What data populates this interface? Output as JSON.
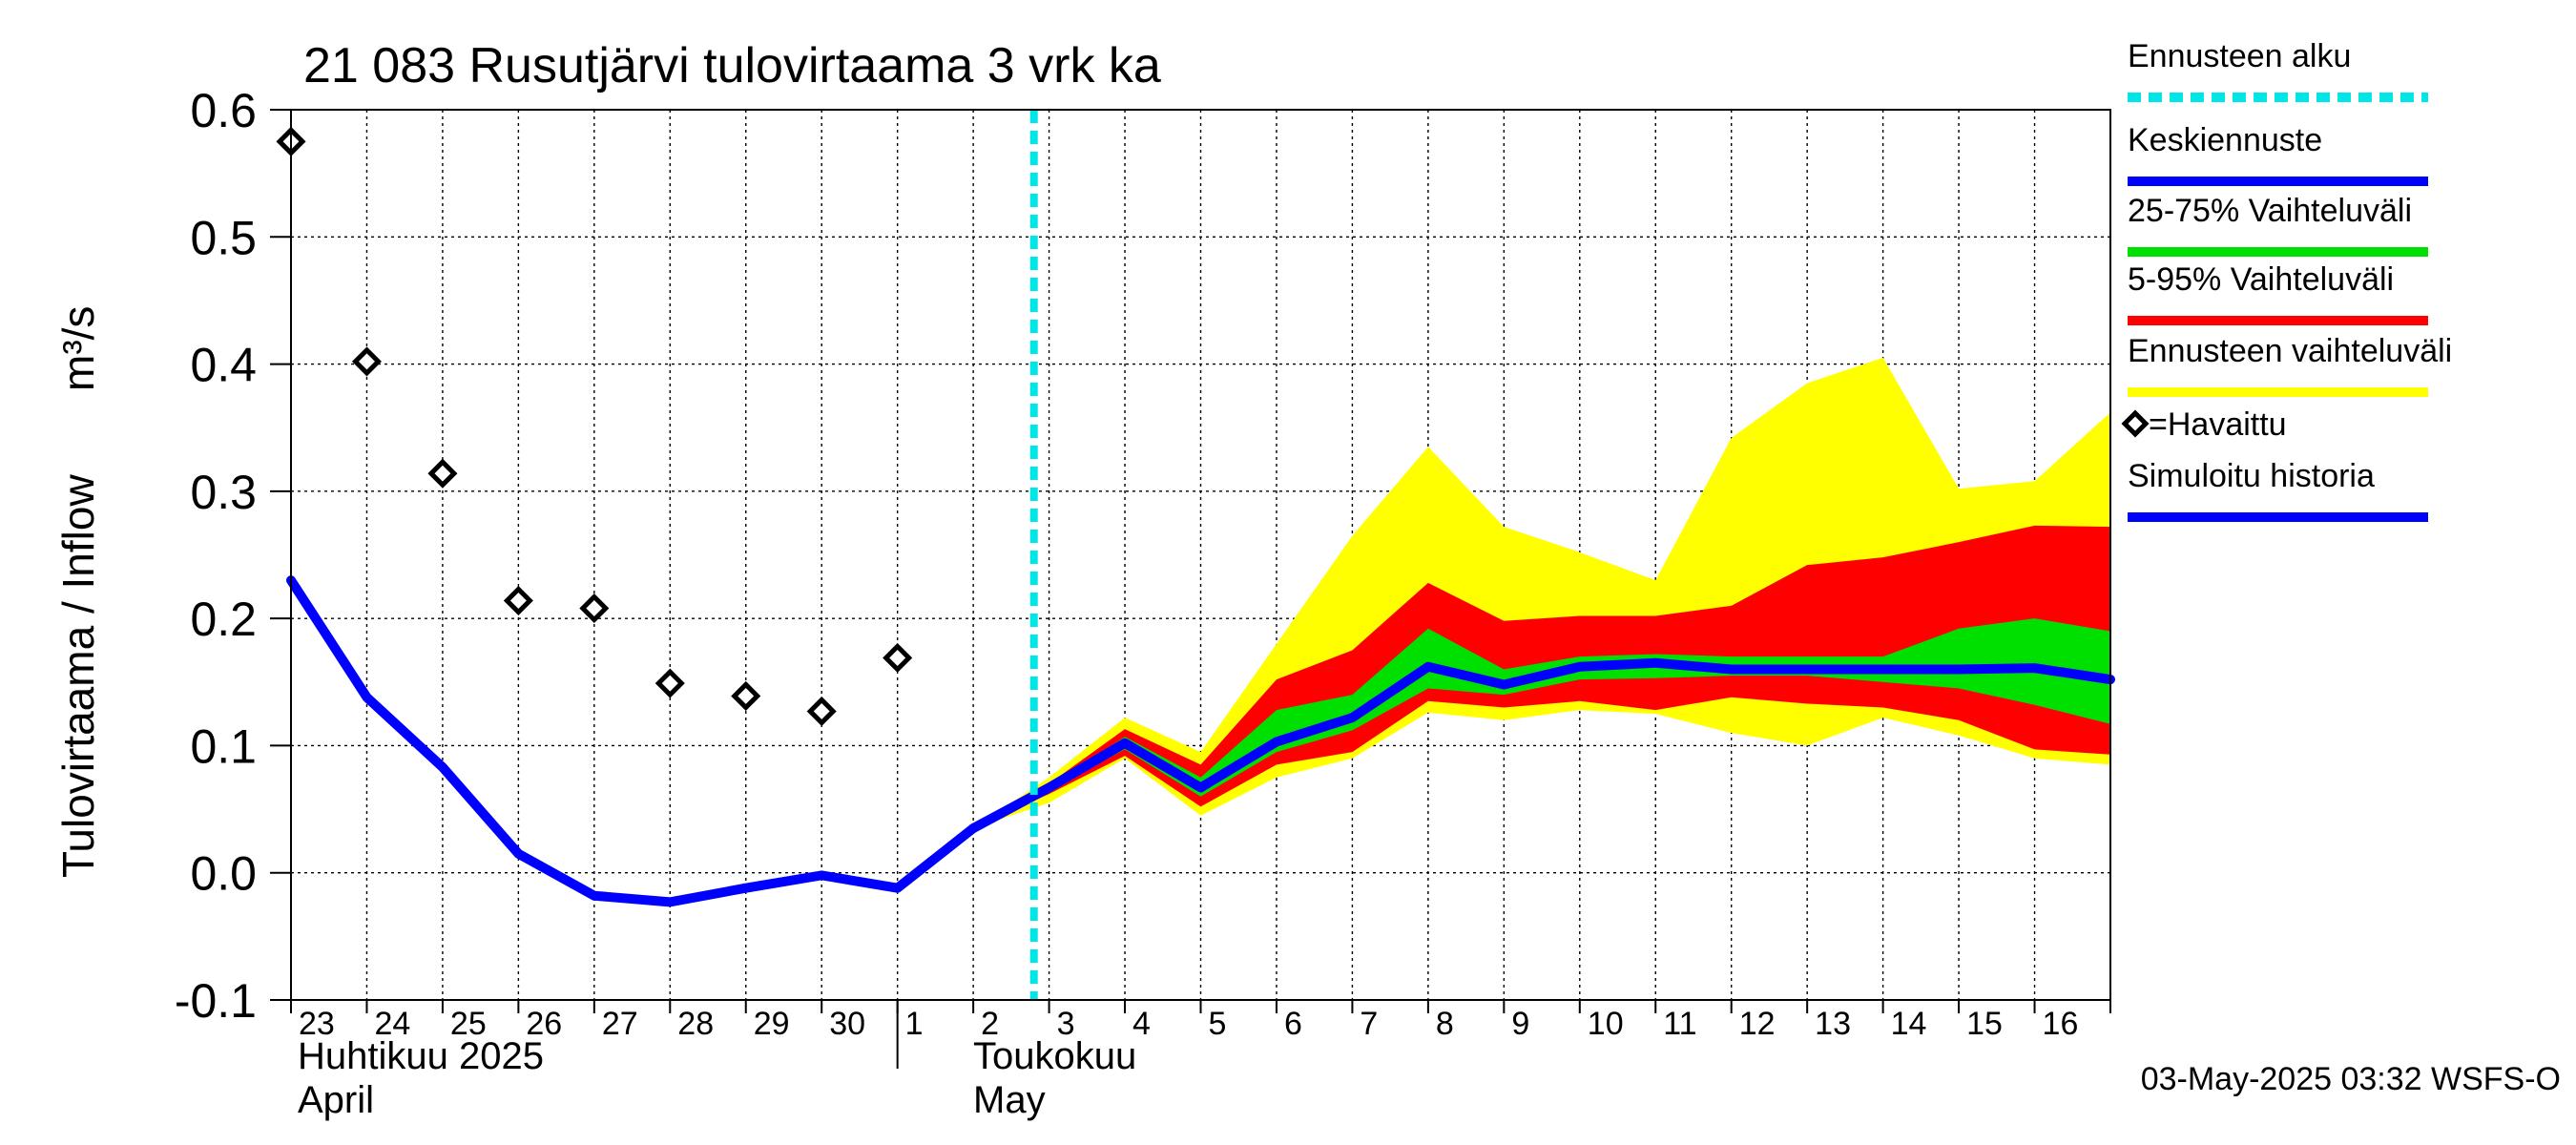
{
  "chart_data": {
    "type": "line",
    "title": "21 083 Rusutjärvi tulovirtaama 3 vrk ka",
    "ylabel": "Tulovirtaama / Inflow",
    "yunit": "m³/s",
    "ylim": [
      -0.1,
      0.6
    ],
    "yticks": [
      "-0.1",
      "0.0",
      "0.1",
      "0.2",
      "0.3",
      "0.4",
      "0.5",
      "0.6"
    ],
    "grid": true,
    "days": [
      "23",
      "24",
      "25",
      "26",
      "27",
      "28",
      "29",
      "30",
      "1",
      "2",
      "3",
      "4",
      "5",
      "6",
      "7",
      "8",
      "9",
      "10",
      "11",
      "12",
      "13",
      "14",
      "15",
      "16"
    ],
    "month_labels": {
      "april_fi": "Huhtikuu  2025",
      "april_en": "April",
      "may_fi": "Toukokuu",
      "may_en": "May"
    },
    "forecast_start_day_index": 9.8,
    "series": [
      {
        "name": "Ennusteen vaihteluväli",
        "kind": "band",
        "color": "#ffff00",
        "x": [
          9,
          10,
          11,
          12,
          13,
          14,
          15,
          16,
          17,
          18,
          19,
          20,
          21,
          22,
          23,
          24
        ],
        "upper": [
          0.035,
          0.075,
          0.122,
          0.095,
          0.18,
          0.265,
          0.335,
          0.272,
          0.252,
          0.23,
          0.342,
          0.385,
          0.405,
          0.302,
          0.308,
          0.362
        ],
        "lower": [
          0.035,
          0.055,
          0.09,
          0.045,
          0.075,
          0.09,
          0.126,
          0.12,
          0.128,
          0.125,
          0.11,
          0.1,
          0.122,
          0.108,
          0.09,
          0.085
        ]
      },
      {
        "name": "5-95% Vaihteluväli",
        "kind": "band",
        "color": "#ff0000",
        "x": [
          9,
          10,
          11,
          12,
          13,
          14,
          15,
          16,
          17,
          18,
          19,
          20,
          21,
          22,
          23,
          24
        ],
        "upper": [
          0.035,
          0.07,
          0.113,
          0.085,
          0.152,
          0.175,
          0.228,
          0.198,
          0.202,
          0.202,
          0.21,
          0.242,
          0.248,
          0.26,
          0.273,
          0.272
        ],
        "lower": [
          0.035,
          0.062,
          0.092,
          0.052,
          0.085,
          0.095,
          0.135,
          0.13,
          0.135,
          0.128,
          0.138,
          0.133,
          0.13,
          0.12,
          0.097,
          0.093
        ]
      },
      {
        "name": "25-75% Vaihteluväli",
        "kind": "band",
        "color": "#00e000",
        "x": [
          9,
          10,
          11,
          12,
          13,
          14,
          15,
          16,
          17,
          18,
          19,
          20,
          21,
          22,
          23,
          24
        ],
        "upper": [
          0.035,
          0.068,
          0.107,
          0.075,
          0.128,
          0.14,
          0.192,
          0.16,
          0.17,
          0.172,
          0.17,
          0.17,
          0.17,
          0.192,
          0.2,
          0.19
        ],
        "lower": [
          0.035,
          0.065,
          0.097,
          0.06,
          0.095,
          0.112,
          0.145,
          0.14,
          0.152,
          0.153,
          0.155,
          0.155,
          0.15,
          0.145,
          0.132,
          0.117
        ]
      },
      {
        "name": "Keskiennuste",
        "kind": "line",
        "color": "#0000ff",
        "x": [
          9,
          10,
          11,
          12,
          13,
          14,
          15,
          16,
          17,
          18,
          19,
          20,
          21,
          22,
          23,
          24
        ],
        "values": [
          0.035,
          0.067,
          0.102,
          0.067,
          0.103,
          0.122,
          0.162,
          0.148,
          0.162,
          0.165,
          0.16,
          0.16,
          0.16,
          0.16,
          0.161,
          0.152
        ]
      },
      {
        "name": "Simuloitu historia",
        "kind": "line",
        "color": "#0000ff",
        "x": [
          0,
          1,
          2,
          3,
          4,
          5,
          6,
          7,
          8,
          9
        ],
        "values": [
          0.23,
          0.138,
          0.083,
          0.015,
          -0.018,
          -0.023,
          -0.012,
          -0.002,
          -0.012,
          0.035
        ]
      },
      {
        "name": "=Havaittu",
        "kind": "points",
        "color": "#000000",
        "x": [
          0,
          1,
          2,
          3,
          4,
          5,
          6,
          7,
          8
        ],
        "values": [
          0.575,
          0.402,
          0.314,
          0.214,
          0.208,
          0.149,
          0.139,
          0.127,
          0.169
        ]
      }
    ],
    "legend": {
      "placement": "right",
      "items": [
        {
          "label": "Ennusteen alku",
          "color": "#00e5e5",
          "style": "dashed"
        },
        {
          "label": "Keskiennuste",
          "color": "#0000ff",
          "style": "line"
        },
        {
          "label": "25-75% Vaihteluväli",
          "color": "#00e000",
          "style": "line"
        },
        {
          "label": "5-95% Vaihteluväli",
          "color": "#ff0000",
          "style": "line"
        },
        {
          "label": "Ennusteen vaihteluväli",
          "color": "#ffff00",
          "style": "line"
        },
        {
          "label": "=Havaittu",
          "color": "#000000",
          "style": "marker"
        },
        {
          "label": "Simuloitu historia",
          "color": "#0000ff",
          "style": "line"
        }
      ]
    },
    "footer": "03-May-2025 03:32 WSFS-O"
  }
}
